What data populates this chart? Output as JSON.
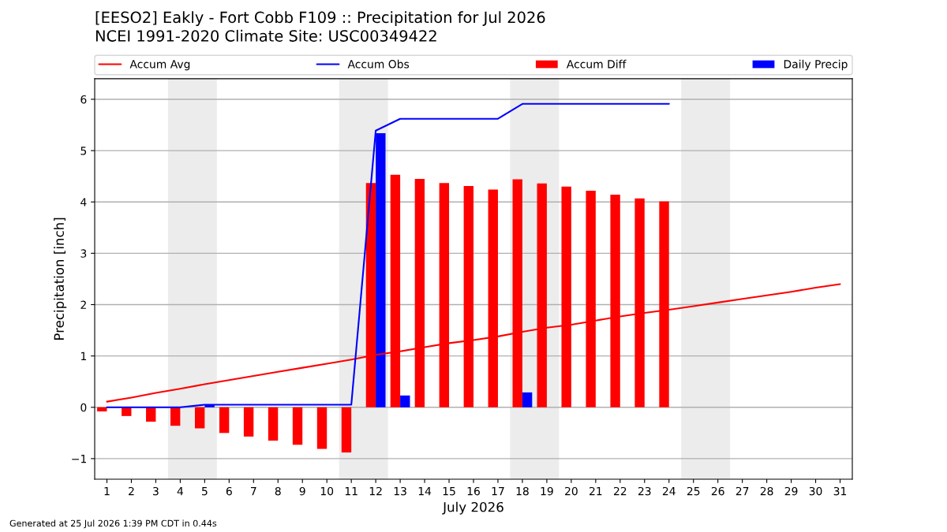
{
  "chart_data": {
    "type": "bar",
    "title": "[EESO2] Eakly - Fort Cobb F109 :: Precipitation for Jul 2026",
    "subtitle": "NCEI 1991-2020 Climate Site: USC00349422",
    "xlabel": "July 2026",
    "ylabel": "Precipitation [inch]",
    "annotations": [
      "Generated at 25 Jul 2026 1:39 PM CDT in 0.44s"
    ],
    "x": [
      1,
      2,
      3,
      4,
      5,
      6,
      7,
      8,
      9,
      10,
      11,
      12,
      13,
      14,
      15,
      16,
      17,
      18,
      19,
      20,
      21,
      22,
      23,
      24,
      25,
      26,
      27,
      28,
      29,
      30,
      31
    ],
    "series": [
      {
        "name": "Accum Avg",
        "type": "line",
        "color": "#ff0000",
        "values": [
          0.11,
          0.19,
          0.28,
          0.36,
          0.45,
          0.53,
          0.61,
          0.69,
          0.77,
          0.85,
          0.93,
          1.02,
          1.09,
          1.17,
          1.25,
          1.31,
          1.38,
          1.47,
          1.55,
          1.61,
          1.69,
          1.77,
          1.84,
          1.9,
          1.97,
          2.04,
          2.11,
          2.18,
          2.25,
          2.33,
          2.4
        ]
      },
      {
        "name": "Accum Obs",
        "type": "line",
        "color": "#0000ff",
        "values": [
          0.0,
          0.0,
          0.0,
          0.0,
          0.05,
          0.05,
          0.05,
          0.05,
          0.05,
          0.05,
          0.05,
          5.39,
          5.62,
          5.62,
          5.62,
          5.62,
          5.62,
          5.91,
          5.91,
          5.91,
          5.91,
          5.91,
          5.91,
          5.91,
          null,
          null,
          null,
          null,
          null,
          null,
          null
        ]
      },
      {
        "name": "Accum Diff",
        "color": "#ff0000",
        "values": [
          -0.08,
          -0.17,
          -0.28,
          -0.36,
          -0.41,
          -0.5,
          -0.57,
          -0.65,
          -0.73,
          -0.81,
          -0.88,
          4.37,
          4.53,
          4.45,
          4.37,
          4.31,
          4.24,
          4.44,
          4.36,
          4.3,
          4.22,
          4.14,
          4.07,
          4.01,
          null,
          null,
          null,
          null,
          null,
          null,
          null
        ]
      },
      {
        "name": "Daily Precip",
        "color": "#0000ff",
        "values": [
          null,
          null,
          null,
          null,
          0.05,
          null,
          null,
          null,
          null,
          null,
          null,
          5.34,
          0.23,
          null,
          null,
          null,
          null,
          0.29,
          null,
          null,
          null,
          null,
          null,
          null,
          null,
          null,
          null,
          null,
          null,
          null,
          null
        ]
      }
    ],
    "xlim": [
      0.5,
      31.5
    ],
    "xticks": [
      1,
      2,
      3,
      4,
      5,
      6,
      7,
      8,
      9,
      10,
      11,
      12,
      13,
      14,
      15,
      16,
      17,
      18,
      19,
      20,
      21,
      22,
      23,
      24,
      25,
      26,
      27,
      28,
      29,
      30,
      31
    ],
    "ylim": [
      -1.4,
      6.4
    ],
    "yticks": [
      {
        "value": -1,
        "label": "−1"
      },
      0,
      1,
      2,
      3,
      4,
      5,
      6
    ],
    "bands": [
      {
        "axis": "x",
        "from": 3.5,
        "to": 5.5,
        "color": "#ececec"
      },
      {
        "axis": "x",
        "from": 10.5,
        "to": 12.5,
        "color": "#ececec"
      },
      {
        "axis": "x",
        "from": 17.5,
        "to": 19.5,
        "color": "#ececec"
      },
      {
        "axis": "x",
        "from": 24.5,
        "to": 26.5,
        "color": "#ececec"
      }
    ],
    "grid": "y",
    "legend": "top"
  }
}
